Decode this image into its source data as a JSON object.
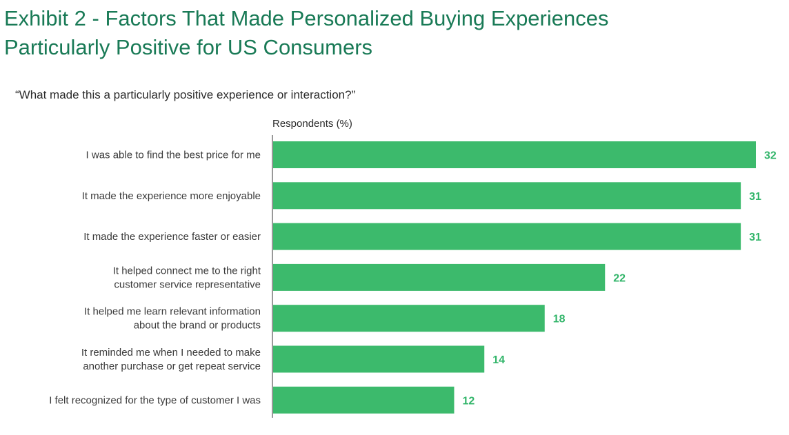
{
  "page": {
    "title_line1": "Exhibit 2 - Factors That Made Personalized Buying Experiences",
    "title_line2": "Particularly Positive for US Consumers",
    "subtitle": "“What made this a particularly positive experience or interaction?”"
  },
  "chart_data": {
    "type": "bar",
    "orientation": "horizontal",
    "xlabel": "Respondents (%)",
    "xlim": [
      0,
      32
    ],
    "grid": false,
    "bar_color": "#3cba6c",
    "label_color": "#32b56a",
    "title_color": "#197a56",
    "categories": [
      [
        "I was able to find the best price for me"
      ],
      [
        "It made the experience more enjoyable"
      ],
      [
        "It made the experience faster or easier"
      ],
      [
        "It helped connect me to the right",
        "customer service representative"
      ],
      [
        "It helped me learn relevant information",
        "about the brand or products"
      ],
      [
        "It reminded me when I needed to make",
        "another purchase or get repeat service"
      ],
      [
        "I felt recognized for the type of customer I was"
      ]
    ],
    "values": [
      32,
      31,
      31,
      22,
      18,
      14,
      12
    ]
  }
}
